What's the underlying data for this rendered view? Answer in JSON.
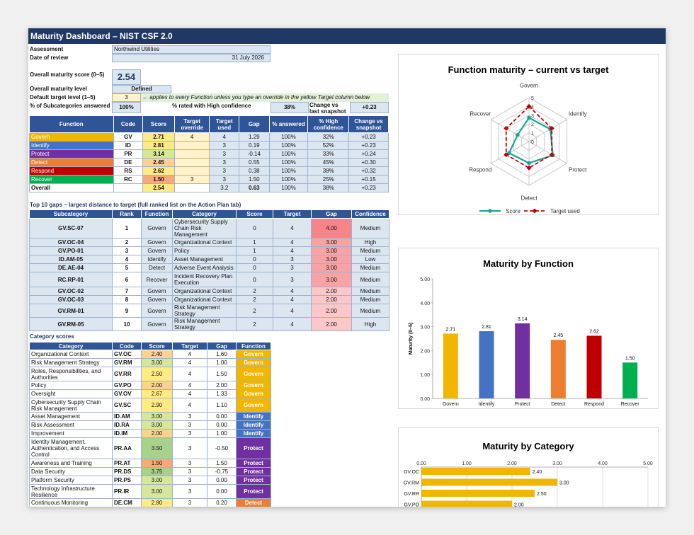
{
  "title": "Maturity Dashboard – NIST CSF 2.0",
  "header": {
    "assessment_label": "Assessment",
    "assessment_value": "Northwind Utilities",
    "date_label": "Date of review",
    "date_value": "31 July 2026",
    "score_label": "Overall maturity score (0–5)",
    "score_value": "2.54",
    "level_label": "Overall maturity level",
    "level_value": "Defined",
    "target_label": "Default target level (1–5)",
    "target_value": "3",
    "target_note": "← applies to every Function unless you type an override in the yellow Target column below",
    "answered_label": "% of Subcategories answered",
    "answered_value": "100%",
    "high_conf_label": "% rated with High confidence",
    "high_conf_value": "38%",
    "change_label": "Change vs last snapshot",
    "change_value": "+0.23"
  },
  "colors": {
    "Govern": "#f2b600",
    "Identify": "#4472c4",
    "Protect": "#7030a0",
    "Detect": "#ed7d31",
    "Respond": "#c00000",
    "Recover": "#00b050"
  },
  "function_table": {
    "headers": [
      "Function",
      "Code",
      "Score",
      "Target override",
      "Target used",
      "Gap",
      "% answered",
      "% High confidence",
      "Change vs snapshot"
    ],
    "rows": [
      {
        "name": "Govern",
        "code": "GV",
        "score": "2.71",
        "override": "4",
        "used": "4",
        "gap": "1.29",
        "answered": "100%",
        "high": "32%",
        "change": "+0.23"
      },
      {
        "name": "Identify",
        "code": "ID",
        "score": "2.81",
        "override": "",
        "used": "3",
        "gap": "0.19",
        "answered": "100%",
        "high": "52%",
        "change": "+0.23"
      },
      {
        "name": "Protect",
        "code": "PR",
        "score": "3.14",
        "override": "",
        "used": "3",
        "gap": "-0.14",
        "answered": "100%",
        "high": "33%",
        "change": "+0.24"
      },
      {
        "name": "Detect",
        "code": "DE",
        "score": "2.45",
        "override": "",
        "used": "3",
        "gap": "0.55",
        "answered": "100%",
        "high": "45%",
        "change": "+0.30"
      },
      {
        "name": "Respond",
        "code": "RS",
        "score": "2.62",
        "override": "",
        "used": "3",
        "gap": "0.38",
        "answered": "100%",
        "high": "38%",
        "change": "+0.32"
      },
      {
        "name": "Recover",
        "code": "RC",
        "score": "1.50",
        "override": "3",
        "used": "3",
        "gap": "1.50",
        "answered": "100%",
        "high": "25%",
        "change": "+0.15"
      }
    ],
    "overall": {
      "name": "Overall",
      "score": "2.54",
      "used": "3.2",
      "gap": "0.63",
      "answered": "100%",
      "high": "38%",
      "change": "+0.23"
    }
  },
  "gaps_section": {
    "title": "Top 10 gaps – largest distance to target (full ranked list on the Action Plan tab)",
    "headers": [
      "Subcategory",
      "Rank",
      "Function",
      "Category",
      "Score",
      "Target",
      "Gap",
      "Confidence"
    ],
    "rows": [
      {
        "sub": "GV.SC-07",
        "rank": "1",
        "func": "Govern",
        "cat": "Cybersecurity Supply Chain Risk Management",
        "score": "0",
        "target": "4",
        "gap": "4.00",
        "conf": "Medium"
      },
      {
        "sub": "GV.OC-04",
        "rank": "2",
        "func": "Govern",
        "cat": "Organizational Context",
        "score": "1",
        "target": "4",
        "gap": "3.00",
        "conf": "High"
      },
      {
        "sub": "GV.PO-01",
        "rank": "3",
        "func": "Govern",
        "cat": "Policy",
        "score": "1",
        "target": "4",
        "gap": "3.00",
        "conf": "Medium"
      },
      {
        "sub": "ID.AM-05",
        "rank": "4",
        "func": "Identify",
        "cat": "Asset Management",
        "score": "0",
        "target": "3",
        "gap": "3.00",
        "conf": "Low"
      },
      {
        "sub": "DE.AE-04",
        "rank": "5",
        "func": "Detect",
        "cat": "Adverse Event Analysis",
        "score": "0",
        "target": "3",
        "gap": "3.00",
        "conf": "Medium"
      },
      {
        "sub": "RC.RP-01",
        "rank": "6",
        "func": "Recover",
        "cat": "Incident Recovery Plan Execution",
        "score": "0",
        "target": "3",
        "gap": "3.00",
        "conf": "Medium"
      },
      {
        "sub": "GV.OC-02",
        "rank": "7",
        "func": "Govern",
        "cat": "Organizational Context",
        "score": "2",
        "target": "4",
        "gap": "2.00",
        "conf": "Medium"
      },
      {
        "sub": "GV.OC-03",
        "rank": "8",
        "func": "Govern",
        "cat": "Organizational Context",
        "score": "2",
        "target": "4",
        "gap": "2.00",
        "conf": "Medium"
      },
      {
        "sub": "GV.RM-01",
        "rank": "9",
        "func": "Govern",
        "cat": "Risk Management Strategy",
        "score": "2",
        "target": "4",
        "gap": "2.00",
        "conf": "Medium"
      },
      {
        "sub": "GV.RM-05",
        "rank": "10",
        "func": "Govern",
        "cat": "Risk Management Strategy",
        "score": "2",
        "target": "4",
        "gap": "2.00",
        "conf": "High"
      }
    ]
  },
  "category_section": {
    "title": "Category scores",
    "headers": [
      "Category",
      "Code",
      "Score",
      "Target",
      "Gap",
      "Function"
    ],
    "rows": [
      {
        "cat": "Organizational Context",
        "code": "GV.OC",
        "score": "2.40",
        "target": "4",
        "gap": "1.60",
        "func": "Govern"
      },
      {
        "cat": "Risk Management Strategy",
        "code": "GV.RM",
        "score": "3.00",
        "target": "4",
        "gap": "1.00",
        "func": "Govern"
      },
      {
        "cat": "Roles, Responsibilities, and Authorities",
        "code": "GV.RR",
        "score": "2.50",
        "target": "4",
        "gap": "1.50",
        "func": "Govern"
      },
      {
        "cat": "Policy",
        "code": "GV.PO",
        "score": "2.00",
        "target": "4",
        "gap": "2.00",
        "func": "Govern"
      },
      {
        "cat": "Oversight",
        "code": "GV.OV",
        "score": "2.67",
        "target": "4",
        "gap": "1.33",
        "func": "Govern"
      },
      {
        "cat": "Cybersecurity Supply Chain Risk Management",
        "code": "GV.SC",
        "score": "2.90",
        "target": "4",
        "gap": "1.10",
        "func": "Govern"
      },
      {
        "cat": "Asset Management",
        "code": "ID.AM",
        "score": "3.00",
        "target": "3",
        "gap": "0.00",
        "func": "Identify"
      },
      {
        "cat": "Risk Assessment",
        "code": "ID.RA",
        "score": "3.00",
        "target": "3",
        "gap": "0.00",
        "func": "Identify"
      },
      {
        "cat": "Improvement",
        "code": "ID.IM",
        "score": "2.00",
        "target": "3",
        "gap": "1.00",
        "func": "Identify"
      },
      {
        "cat": "Identity Management, Authentication, and Access Control",
        "code": "PR.AA",
        "score": "3.50",
        "target": "3",
        "gap": "-0.50",
        "func": "Protect"
      },
      {
        "cat": "Awareness and Training",
        "code": "PR.AT",
        "score": "1.50",
        "target": "3",
        "gap": "1.50",
        "func": "Protect"
      },
      {
        "cat": "Data Security",
        "code": "PR.DS",
        "score": "3.75",
        "target": "3",
        "gap": "-0.75",
        "func": "Protect"
      },
      {
        "cat": "Platform Security",
        "code": "PR.PS",
        "score": "3.00",
        "target": "3",
        "gap": "0.00",
        "func": "Protect"
      },
      {
        "cat": "Technology Infrastructure Resilience",
        "code": "PR.IR",
        "score": "3.00",
        "target": "3",
        "gap": "0.00",
        "func": "Protect"
      },
      {
        "cat": "Continuous Monitoring",
        "code": "DE.CM",
        "score": "2.80",
        "target": "3",
        "gap": "0.20",
        "func": "Detect"
      }
    ]
  },
  "chart_data": [
    {
      "type": "radar",
      "title": "Function maturity – current vs target",
      "categories": [
        "Govern",
        "Identify",
        "Protect",
        "Detect",
        "Respond",
        "Recover"
      ],
      "rlim": [
        0,
        5
      ],
      "ticks": [
        "0",
        "1",
        "2",
        "3",
        "4",
        "5"
      ],
      "series": [
        {
          "name": "Score",
          "values": [
            2.71,
            2.81,
            3.14,
            2.45,
            2.62,
            1.5
          ],
          "color": "#1aa39a"
        },
        {
          "name": "Target used",
          "values": [
            4,
            3,
            3,
            3,
            3,
            3
          ],
          "color": "#c00000"
        }
      ],
      "legend": "bottom"
    },
    {
      "type": "bar",
      "title": "Maturity by Function",
      "categories": [
        "Govern",
        "Identify",
        "Protect",
        "Detect",
        "Respond",
        "Recover"
      ],
      "values": [
        2.71,
        2.81,
        3.14,
        2.45,
        2.62,
        1.5
      ],
      "labels": [
        "2.71",
        "2.81",
        "3.14",
        "2.45",
        "2.62",
        "1.50"
      ],
      "ylabel": "Maturity (0–5)",
      "ylim": [
        0,
        5
      ],
      "yticks": [
        "0.00",
        "1.00",
        "2.00",
        "3.00",
        "4.00",
        "5.00"
      ],
      "grid": false
    },
    {
      "type": "bar-horizontal",
      "title": "Maturity by Category",
      "categories": [
        "GV.OC",
        "GV.RM",
        "GV.RR",
        "GV.PO"
      ],
      "values": [
        2.4,
        3.0,
        2.5,
        2.0
      ],
      "labels": [
        "2.40",
        "3.00",
        "2.50",
        "2.00"
      ],
      "xlim": [
        0,
        5
      ],
      "xticks": [
        "0.00",
        "1.00",
        "2.00",
        "3.00",
        "4.00",
        "5.00"
      ],
      "color": "#f2b600",
      "grid": true
    }
  ]
}
